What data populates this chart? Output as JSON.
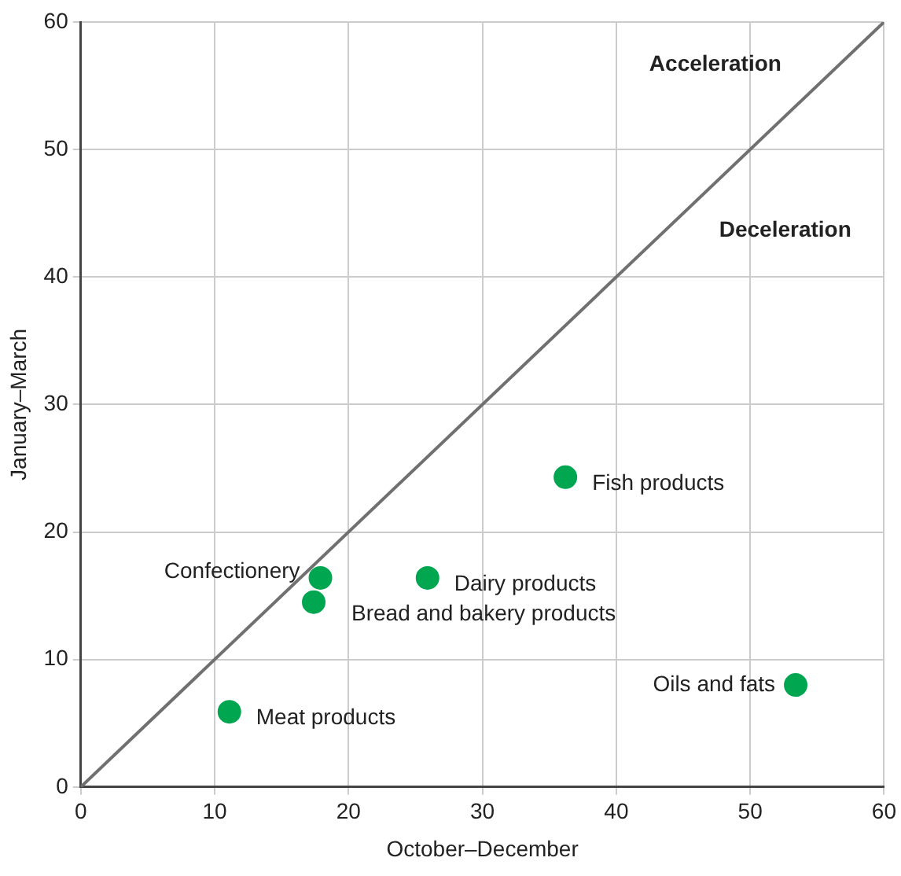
{
  "chart_data": {
    "type": "scatter",
    "xlabel": "October–December",
    "ylabel": "January–March",
    "xlim": [
      0,
      60
    ],
    "ylim": [
      0,
      60
    ],
    "xticks": [
      0,
      10,
      20,
      30,
      40,
      50,
      60
    ],
    "yticks": [
      0,
      10,
      20,
      30,
      40,
      50,
      60
    ],
    "grid": true,
    "legend": false,
    "marker": "circle",
    "series": [
      {
        "name": "Fish products",
        "color": "#00a650",
        "x": [
          36.2
        ],
        "values": [
          24.3
        ]
      },
      {
        "name": "Dairy products",
        "color": "#00a650",
        "x": [
          25.9
        ],
        "values": [
          16.4
        ]
      },
      {
        "name": "Confectionery",
        "color": "#00a650",
        "x": [
          17.9
        ],
        "values": [
          16.4
        ]
      },
      {
        "name": "Bread and bakery products",
        "color": "#00a650",
        "x": [
          17.4
        ],
        "values": [
          14.5
        ]
      },
      {
        "name": "Meat products",
        "color": "#00a650",
        "x": [
          11.1
        ],
        "values": [
          5.9
        ]
      },
      {
        "name": "Oils and fats",
        "color": "#00a650",
        "x": [
          53.4
        ],
        "values": [
          8.0
        ]
      },
      {
        "type": "line",
        "color": "#707070",
        "x": [
          0,
          60
        ],
        "values": [
          0,
          60
        ],
        "marker": "none"
      }
    ],
    "annotations": [
      "Acceleration",
      "Deceleration"
    ]
  }
}
